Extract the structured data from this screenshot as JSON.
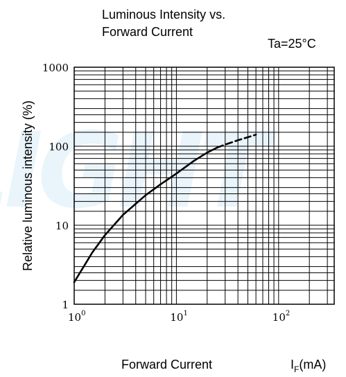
{
  "chart_data": {
    "type": "line",
    "title": [
      "Luminous Intensity vs.",
      "Forward Current"
    ],
    "condition": "Ta=25°C",
    "xlabel": "Forward Current",
    "xunit": {
      "main": "I",
      "sub": "F",
      "tail": "(mA)"
    },
    "ylabel": "Relative luminous intensity  (%)",
    "x_scale": "log",
    "y_scale": "log",
    "xlim": [
      1,
      350
    ],
    "ylim": [
      1,
      1000
    ],
    "x_ticks": [
      {
        "base": "10",
        "exp": "0",
        "value": 1
      },
      {
        "base": "10",
        "exp": "1",
        "value": 10
      },
      {
        "base": "10",
        "exp": "2",
        "value": 100
      }
    ],
    "y_ticks": [
      {
        "label": "1",
        "value": 1
      },
      {
        "label": "10",
        "value": 10
      },
      {
        "label": "100",
        "value": 100
      },
      {
        "label": "1000",
        "value": 1000
      }
    ],
    "grid": true,
    "series": [
      {
        "style": "solid",
        "x": [
          1,
          1.5,
          2,
          3,
          5,
          7,
          10,
          15,
          20,
          25
        ],
        "y": [
          1.9,
          4.5,
          7.5,
          13.5,
          24,
          33,
          45,
          66,
          83,
          96
        ]
      },
      {
        "style": "dashed",
        "x": [
          25,
          30,
          40,
          50,
          60
        ],
        "y": [
          96,
          105,
          119,
          130,
          140
        ]
      }
    ],
    "colors": {
      "line": "#000000",
      "grid": "#000000",
      "watermark": "#bfe0f4"
    }
  },
  "watermark": "LIGHT"
}
